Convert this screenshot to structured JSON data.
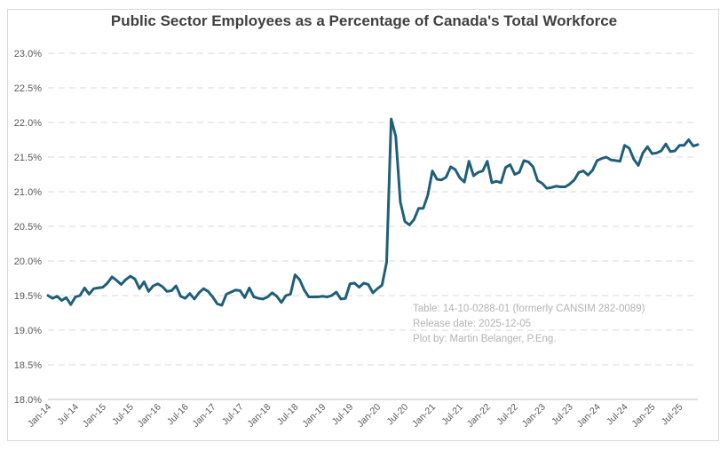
{
  "chart_data": {
    "type": "line",
    "title": "Public Sector Employees as a Percentage of Canada's Total Workforce",
    "notes": [
      "Table: 14-10-0288-01 (formerly CANSIM 282-0089)",
      "Release date: 2025-12-05",
      "Plot by: Martin Belanger, P.Eng."
    ],
    "xlabel": "",
    "ylabel": "",
    "ylim": [
      18.0,
      23.0
    ],
    "y_ticks": [
      "18.0%",
      "18.5%",
      "19.0%",
      "19.5%",
      "20.0%",
      "20.5%",
      "21.0%",
      "21.5%",
      "22.0%",
      "22.5%",
      "23.0%"
    ],
    "x_ticks": [
      "Jan-14",
      "Jul-14",
      "Jan-15",
      "Jul-15",
      "Jan-16",
      "Jul-16",
      "Jan-17",
      "Jul-17",
      "Jan-18",
      "Jul-18",
      "Jan-19",
      "Jul-19",
      "Jan-20",
      "Jul-20",
      "Jan-21",
      "Jul-21",
      "Jan-22",
      "Jul-22",
      "Jan-23",
      "Jul-23",
      "Jan-24",
      "Jul-24",
      "Jan-25",
      "Jul-25"
    ],
    "grid": true,
    "line_color": "#1f5f7a",
    "series": [
      {
        "start": "2014-01",
        "frequency": "monthly",
        "values": [
          19.5,
          19.46,
          19.49,
          19.43,
          19.47,
          19.37,
          19.48,
          19.5,
          19.61,
          19.52,
          19.6,
          19.61,
          19.62,
          19.68,
          19.77,
          19.72,
          19.66,
          19.73,
          19.78,
          19.74,
          19.6,
          19.7,
          19.56,
          19.64,
          19.67,
          19.63,
          19.56,
          19.57,
          19.64,
          19.49,
          19.46,
          19.53,
          19.45,
          19.54,
          19.6,
          19.56,
          19.48,
          19.38,
          19.36,
          19.52,
          19.55,
          19.58,
          19.57,
          19.47,
          19.61,
          19.48,
          19.46,
          19.45,
          19.48,
          19.54,
          19.49,
          19.4,
          19.5,
          19.52,
          19.8,
          19.73,
          19.58,
          19.48,
          19.48,
          19.48,
          19.49,
          19.48,
          19.5,
          19.55,
          19.45,
          19.46,
          19.67,
          19.68,
          19.62,
          19.68,
          19.66,
          19.54,
          19.6,
          19.65,
          19.98,
          22.05,
          21.8,
          20.85,
          20.57,
          20.52,
          20.6,
          20.76,
          20.76,
          20.95,
          21.3,
          21.18,
          21.17,
          21.21,
          21.36,
          21.32,
          21.2,
          21.14,
          21.44,
          21.23,
          21.28,
          21.3,
          21.44,
          21.13,
          21.15,
          21.13,
          21.35,
          21.39,
          21.25,
          21.28,
          21.45,
          21.43,
          21.36,
          21.16,
          21.12,
          21.05,
          21.06,
          21.08,
          21.07,
          21.07,
          21.11,
          21.17,
          21.28,
          21.3,
          21.24,
          21.31,
          21.45,
          21.48,
          21.5,
          21.46,
          21.45,
          21.44,
          21.67,
          21.63,
          21.47,
          21.38,
          21.56,
          21.65,
          21.55,
          21.56,
          21.59,
          21.69,
          21.58,
          21.59,
          21.67,
          21.67,
          21.75,
          21.66,
          21.68
        ]
      }
    ]
  }
}
